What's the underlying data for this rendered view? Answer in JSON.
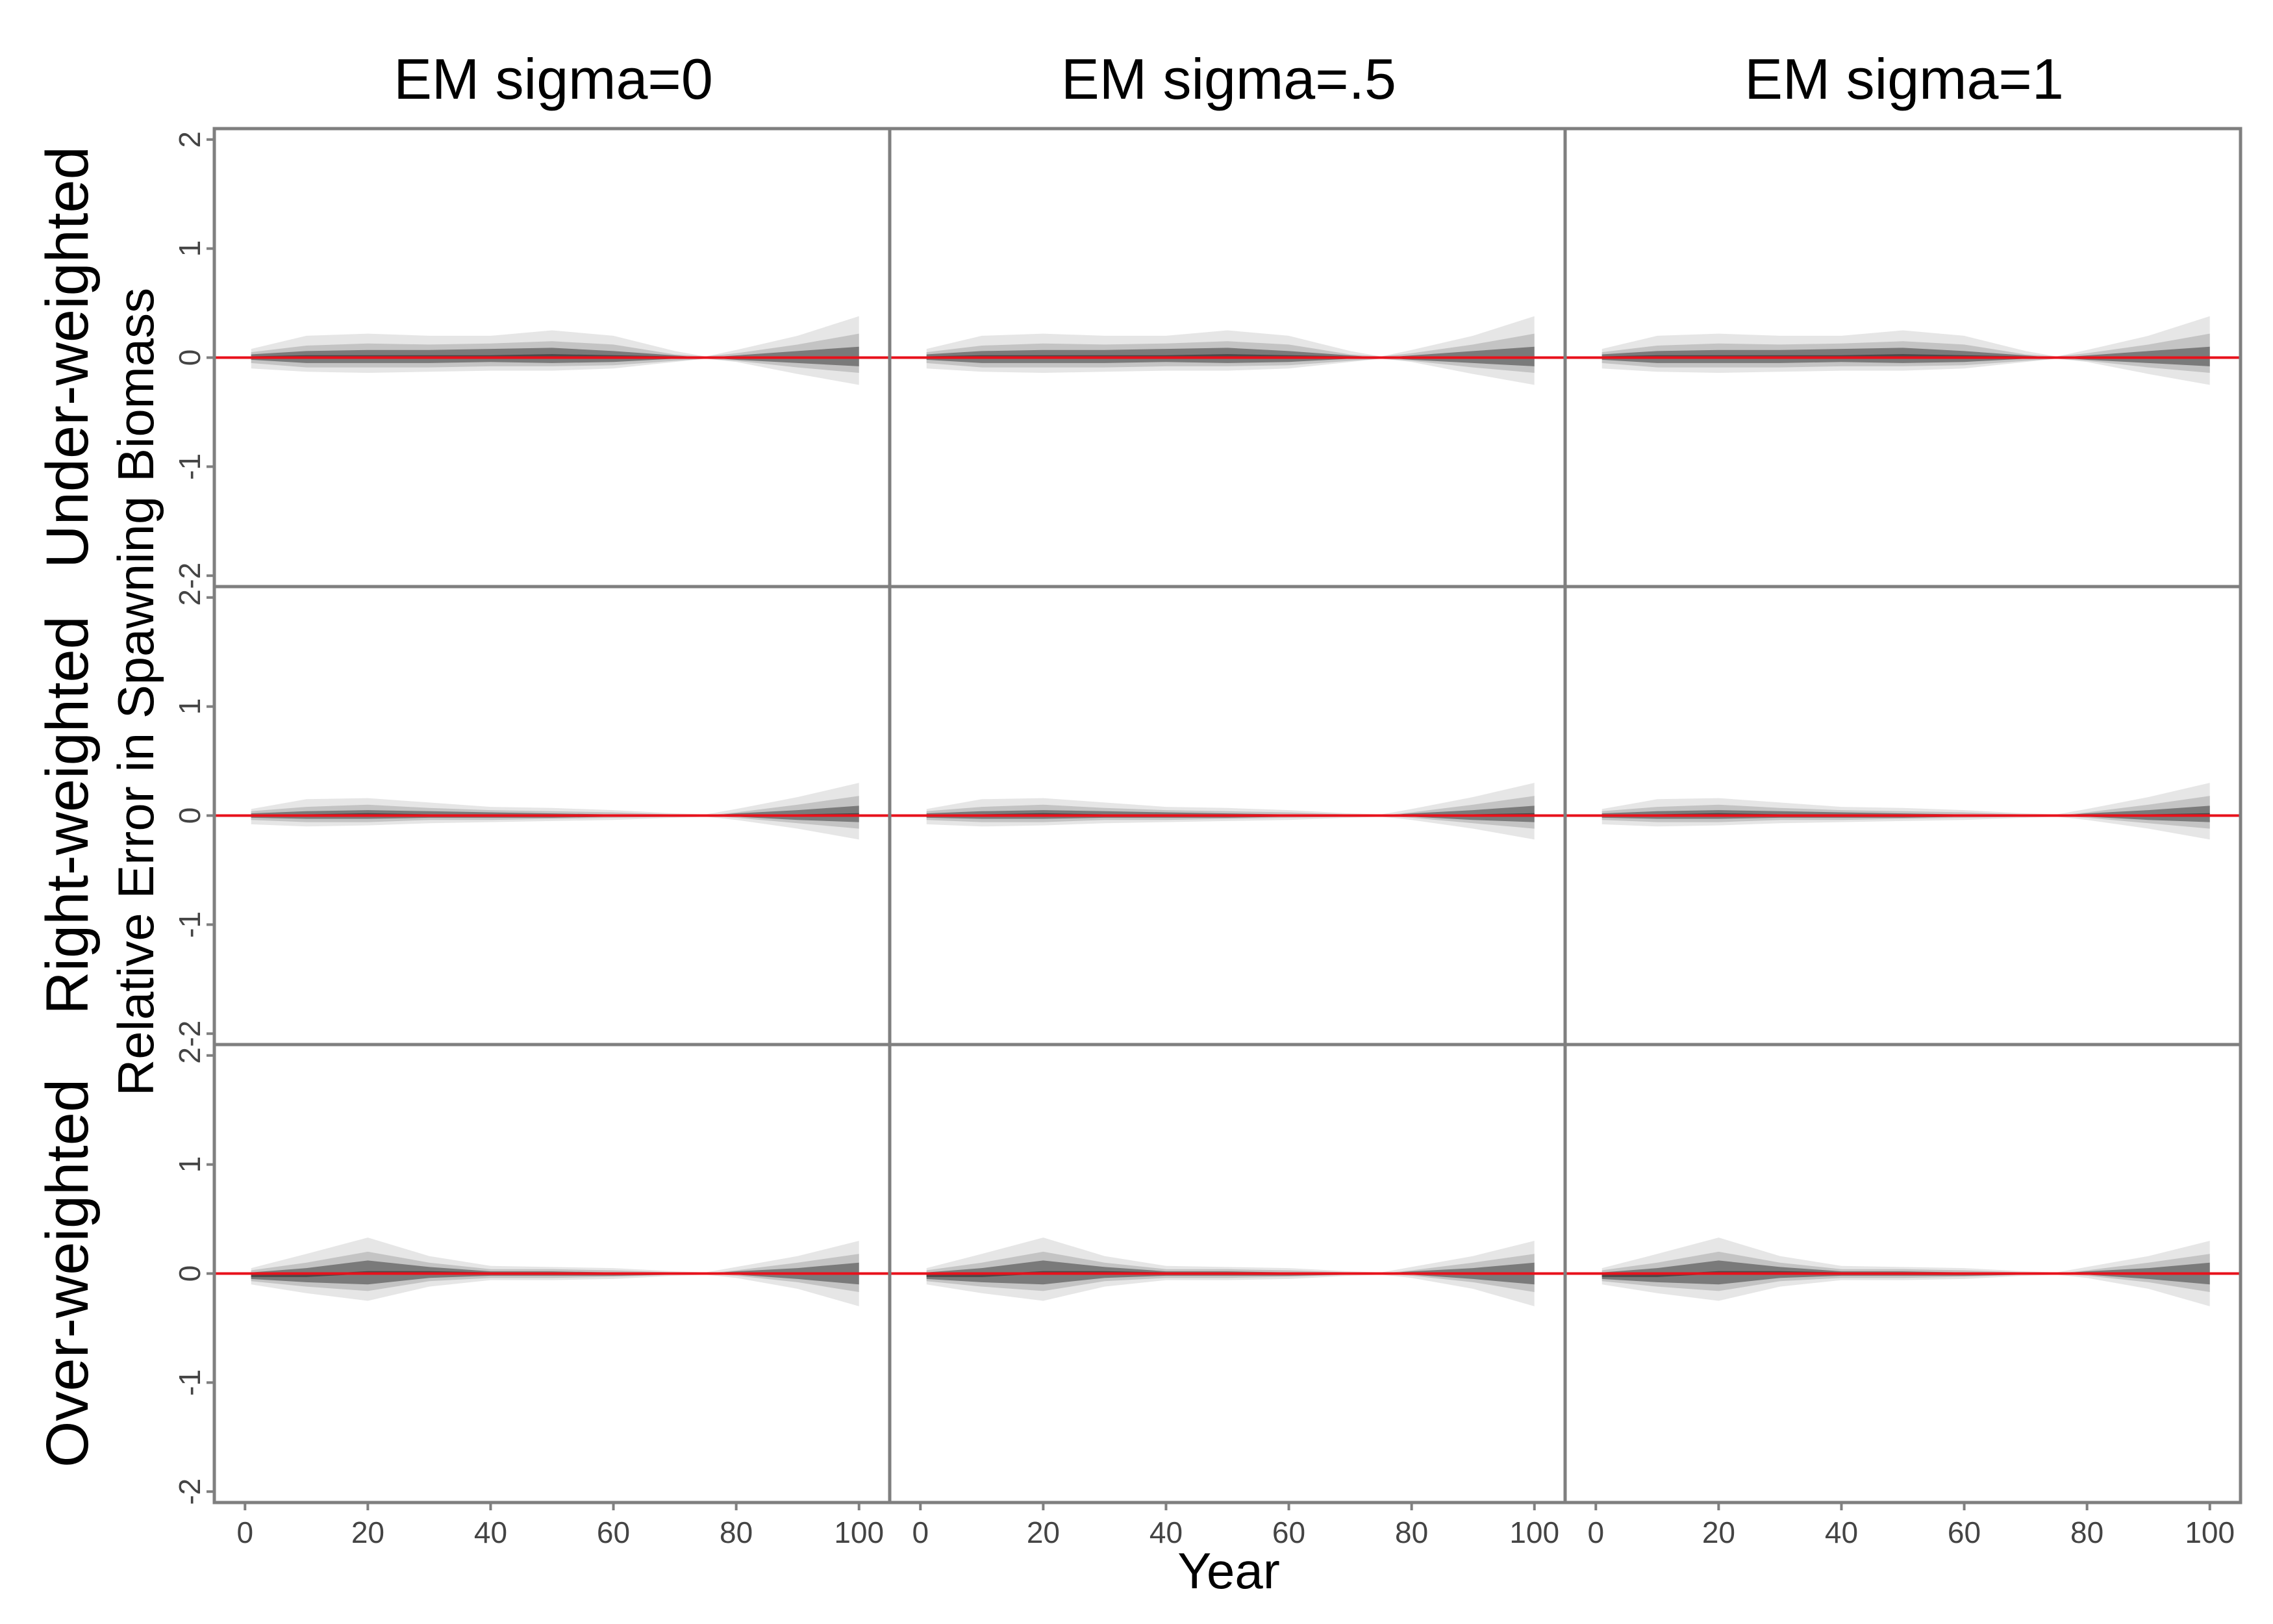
{
  "chart_data": {
    "type": "area",
    "facet_columns": [
      "EM sigma=0",
      "EM sigma=.5",
      "EM sigma=1"
    ],
    "facet_rows": [
      "Under-weighted",
      "Right-weighted",
      "Over-weighted"
    ],
    "xlabel": "Year",
    "ylabel": "Relative Error in Spawning Biomass",
    "xlim": [
      -5,
      105
    ],
    "ylim": [
      -2.1,
      2.1
    ],
    "x_ticks": [
      0,
      20,
      40,
      60,
      80,
      100
    ],
    "y_ticks": [
      -2,
      -1,
      0,
      1,
      2
    ],
    "grid": false,
    "reference_line": {
      "y": 0,
      "color": "#e8111b"
    },
    "band_colors": [
      "#e6e6e6",
      "#c4c4c4",
      "#7a7a7a"
    ],
    "median_color": "#4a4a4a",
    "x": [
      1,
      10,
      20,
      30,
      40,
      50,
      60,
      70,
      75,
      80,
      90,
      100
    ],
    "panels": [
      {
        "row": "Under-weighted",
        "bands": [
          {
            "lower": [
              -0.1,
              -0.13,
              -0.14,
              -0.13,
              -0.12,
              -0.12,
              -0.1,
              -0.04,
              -0.01,
              -0.04,
              -0.15,
              -0.25
            ],
            "upper": [
              0.08,
              0.2,
              0.22,
              0.2,
              0.2,
              0.25,
              0.2,
              0.06,
              0.01,
              0.07,
              0.2,
              0.38
            ]
          },
          {
            "lower": [
              -0.05,
              -0.09,
              -0.09,
              -0.09,
              -0.08,
              -0.08,
              -0.07,
              -0.03,
              -0.01,
              -0.03,
              -0.09,
              -0.14
            ],
            "upper": [
              0.05,
              0.11,
              0.13,
              0.12,
              0.13,
              0.15,
              0.12,
              0.03,
              0.01,
              0.04,
              0.12,
              0.22
            ]
          },
          {
            "lower": [
              -0.02,
              -0.05,
              -0.05,
              -0.05,
              -0.04,
              -0.05,
              -0.04,
              -0.01,
              0.0,
              -0.02,
              -0.05,
              -0.08
            ],
            "upper": [
              0.03,
              0.06,
              0.07,
              0.07,
              0.08,
              0.09,
              0.06,
              0.02,
              0.0,
              0.02,
              0.06,
              0.1
            ]
          }
        ],
        "median": [
          0.0,
          0.01,
          0.01,
          0.01,
          0.01,
          0.02,
          0.01,
          0.0,
          0.0,
          0.0,
          0.0,
          0.0
        ]
      },
      {
        "row": "Right-weighted",
        "bands": [
          {
            "lower": [
              -0.08,
              -0.1,
              -0.09,
              -0.07,
              -0.06,
              -0.05,
              -0.04,
              -0.02,
              -0.01,
              -0.04,
              -0.12,
              -0.22
            ],
            "upper": [
              0.06,
              0.15,
              0.16,
              0.12,
              0.08,
              0.07,
              0.05,
              0.02,
              0.01,
              0.06,
              0.17,
              0.3
            ]
          },
          {
            "lower": [
              -0.04,
              -0.06,
              -0.06,
              -0.04,
              -0.04,
              -0.03,
              -0.02,
              -0.01,
              0.0,
              -0.02,
              -0.07,
              -0.12
            ],
            "upper": [
              0.04,
              0.08,
              0.1,
              0.07,
              0.05,
              0.04,
              0.03,
              0.01,
              0.0,
              0.03,
              0.1,
              0.18
            ]
          },
          {
            "lower": [
              -0.02,
              -0.03,
              -0.03,
              -0.02,
              -0.02,
              -0.02,
              -0.01,
              0.0,
              0.0,
              -0.01,
              -0.04,
              -0.06
            ],
            "upper": [
              0.02,
              0.04,
              0.05,
              0.04,
              0.03,
              0.02,
              0.01,
              0.0,
              0.0,
              0.02,
              0.05,
              0.09
            ]
          }
        ],
        "median": [
          0.0,
          0.0,
          0.01,
          0.0,
          0.0,
          0.0,
          0.0,
          0.0,
          0.0,
          0.0,
          0.0,
          0.01
        ]
      },
      {
        "row": "Over-weighted",
        "bands": [
          {
            "lower": [
              -0.1,
              -0.18,
              -0.25,
              -0.12,
              -0.06,
              -0.06,
              -0.05,
              -0.02,
              -0.01,
              -0.04,
              -0.14,
              -0.3
            ],
            "upper": [
              0.05,
              0.18,
              0.33,
              0.16,
              0.07,
              0.06,
              0.05,
              0.02,
              0.01,
              0.06,
              0.16,
              0.3
            ]
          },
          {
            "lower": [
              -0.07,
              -0.12,
              -0.16,
              -0.07,
              -0.04,
              -0.04,
              -0.03,
              -0.01,
              0.0,
              -0.02,
              -0.08,
              -0.17
            ],
            "upper": [
              0.03,
              0.1,
              0.2,
              0.1,
              0.04,
              0.04,
              0.03,
              0.01,
              0.0,
              0.03,
              0.1,
              0.18
            ]
          },
          {
            "lower": [
              -0.05,
              -0.08,
              -0.1,
              -0.04,
              -0.02,
              -0.02,
              -0.02,
              -0.01,
              0.0,
              -0.01,
              -0.05,
              -0.1
            ],
            "upper": [
              0.01,
              0.05,
              0.12,
              0.06,
              0.02,
              0.02,
              0.01,
              0.0,
              0.0,
              0.02,
              0.05,
              0.1
            ]
          }
        ],
        "median": [
          -0.02,
          -0.02,
          0.01,
          0.01,
          0.0,
          0.0,
          0.0,
          0.0,
          0.0,
          0.0,
          0.0,
          0.0
        ]
      }
    ]
  }
}
